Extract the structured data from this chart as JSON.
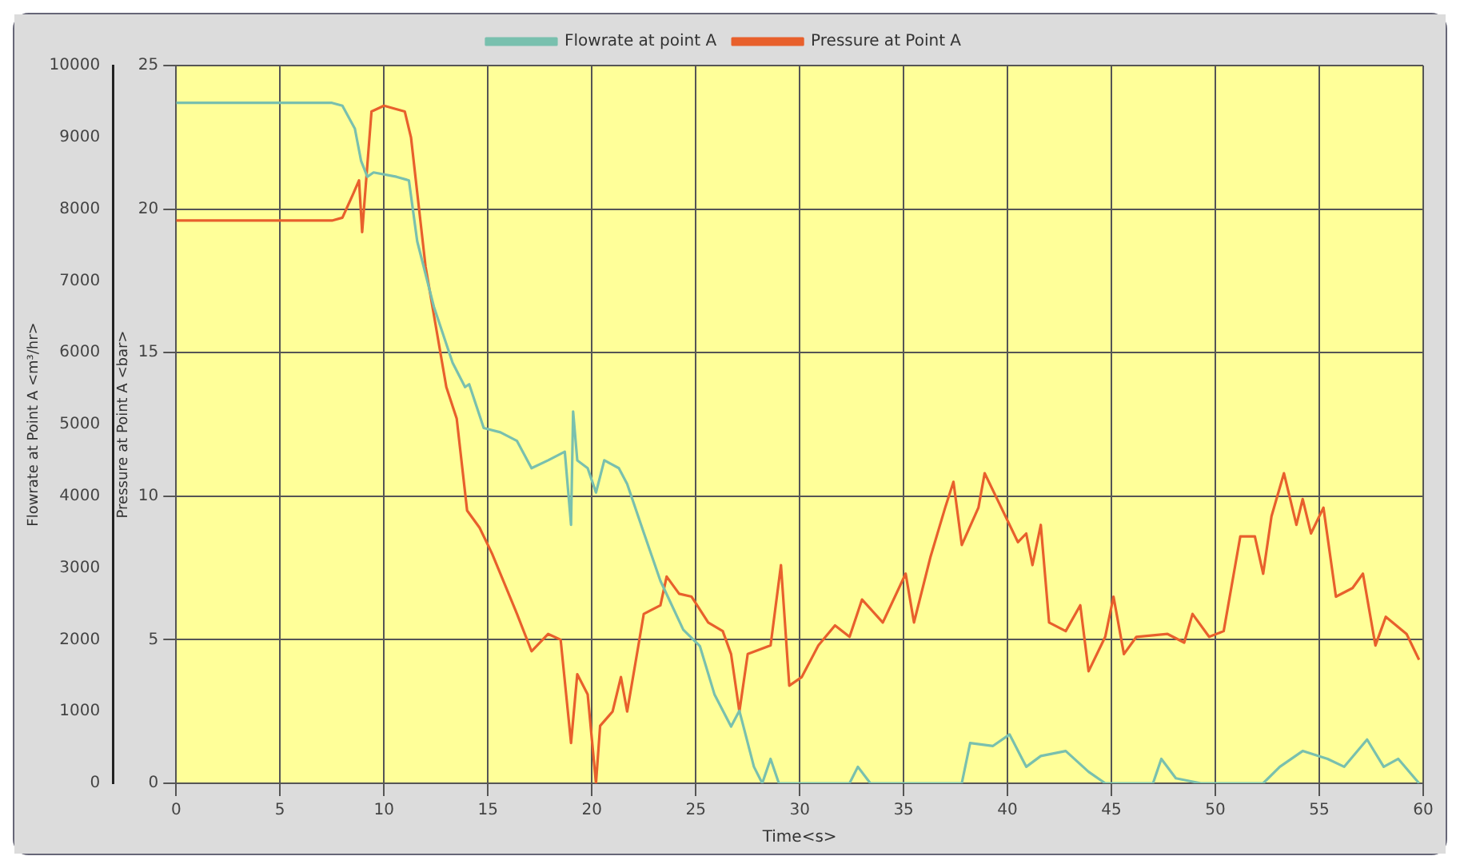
{
  "chart_data": {
    "type": "line",
    "xlabel": "Time<s>",
    "ylabel": "Pressure at Point A <bar>",
    "y2label": "Flowrate at Point A <m³/hr>",
    "xlim": [
      0,
      60
    ],
    "xticks": [
      0,
      5,
      10,
      15,
      20,
      25,
      30,
      35,
      40,
      45,
      50,
      55,
      60
    ],
    "ylim": [
      0,
      25
    ],
    "yticks": [
      0,
      5,
      10,
      15,
      20,
      25
    ],
    "y2lim": [
      0,
      10000
    ],
    "y2ticks": [
      0,
      1000,
      2000,
      3000,
      4000,
      5000,
      6000,
      7000,
      8000,
      9000,
      10000
    ],
    "grid": true,
    "legend": "top",
    "marker": "none",
    "line_style": "solid",
    "series": [
      {
        "name": "Flowrate at point A",
        "color": "#79c0ae",
        "axis": "y2",
        "x": [
          0,
          7.5,
          8.0,
          8.6,
          8.9,
          9.2,
          9.5,
          10.6,
          11.2,
          11.6,
          12.4,
          13.3,
          13.9,
          14.1,
          14.8,
          15.6,
          16.4,
          17.1,
          17.9,
          18.7,
          19.0,
          19.1,
          19.3,
          19.8,
          20.2,
          20.6,
          21.3,
          21.7,
          22.5,
          23.3,
          24.4,
          25.2,
          25.9,
          26.7,
          27.1,
          27.8,
          28.2,
          28.6,
          29.0,
          32.4,
          32.8,
          33.4,
          37.8,
          38.2,
          39.3,
          40.1,
          40.9,
          41.6,
          42.8,
          43.9,
          44.7,
          47.0,
          47.4,
          48.1,
          49.3,
          52.3,
          53.1,
          54.2,
          55.4,
          56.2,
          57.3,
          58.1,
          58.8,
          59.8
        ],
        "values": [
          9480,
          9480,
          9440,
          9120,
          8670,
          8450,
          8510,
          8450,
          8400,
          7550,
          6640,
          5860,
          5520,
          5560,
          4950,
          4890,
          4770,
          4390,
          4500,
          4620,
          3600,
          5180,
          4500,
          4390,
          4050,
          4500,
          4390,
          4170,
          3490,
          2820,
          2140,
          1910,
          1240,
          790,
          1010,
          230,
          0,
          340,
          0,
          0,
          230,
          0,
          0,
          560,
          520,
          680,
          230,
          380,
          450,
          160,
          0,
          0,
          340,
          70,
          0,
          0,
          230,
          450,
          340,
          230,
          610,
          230,
          340,
          0
        ]
      },
      {
        "name": "Pressure at Point A",
        "color": "#e8602c",
        "x": [
          0,
          7.5,
          8.0,
          8.5,
          8.8,
          8.95,
          9.4,
          10.0,
          11.0,
          11.3,
          12.0,
          13.0,
          13.5,
          14.0,
          14.6,
          15.2,
          16.4,
          17.1,
          17.9,
          18.5,
          19.0,
          19.3,
          19.8,
          20.2,
          20.4,
          21.0,
          21.4,
          21.7,
          22.5,
          23.3,
          23.6,
          24.2,
          24.8,
          25.6,
          26.3,
          26.7,
          27.1,
          27.5,
          28.6,
          29.1,
          29.5,
          30.1,
          30.9,
          31.7,
          32.4,
          33.0,
          34.0,
          35.1,
          35.5,
          36.3,
          37.0,
          37.4,
          37.8,
          38.6,
          38.9,
          39.7,
          40.5,
          40.9,
          41.2,
          41.6,
          42.0,
          42.8,
          43.5,
          43.9,
          44.7,
          45.1,
          45.6,
          46.2,
          47.7,
          48.5,
          48.9,
          49.7,
          50.4,
          51.2,
          51.9,
          52.3,
          52.7,
          53.3,
          53.9,
          54.2,
          54.6,
          55.2,
          55.8,
          56.6,
          57.1,
          57.7,
          58.2,
          59.2,
          59.8
        ],
        "values": [
          19.6,
          19.6,
          19.7,
          20.5,
          21.0,
          19.2,
          23.4,
          23.6,
          23.4,
          22.5,
          18.0,
          13.8,
          12.7,
          9.5,
          8.9,
          8.0,
          5.9,
          4.6,
          5.2,
          5.0,
          1.4,
          3.8,
          3.1,
          0,
          2.0,
          2.5,
          3.7,
          2.5,
          5.9,
          6.2,
          7.2,
          6.6,
          6.5,
          5.6,
          5.3,
          4.5,
          2.5,
          4.5,
          4.8,
          7.6,
          3.4,
          3.7,
          4.8,
          5.5,
          5.1,
          6.4,
          5.6,
          7.3,
          5.6,
          7.9,
          9.6,
          10.5,
          8.3,
          9.6,
          10.8,
          9.6,
          8.4,
          8.7,
          7.6,
          9.0,
          5.6,
          5.3,
          6.2,
          3.9,
          5.1,
          6.5,
          4.5,
          5.1,
          5.2,
          4.9,
          5.9,
          5.1,
          5.3,
          8.6,
          8.6,
          7.3,
          9.3,
          10.8,
          9.0,
          9.9,
          8.7,
          9.6,
          6.5,
          6.8,
          7.3,
          4.8,
          5.8,
          5.2,
          4.3
        ]
      }
    ]
  }
}
